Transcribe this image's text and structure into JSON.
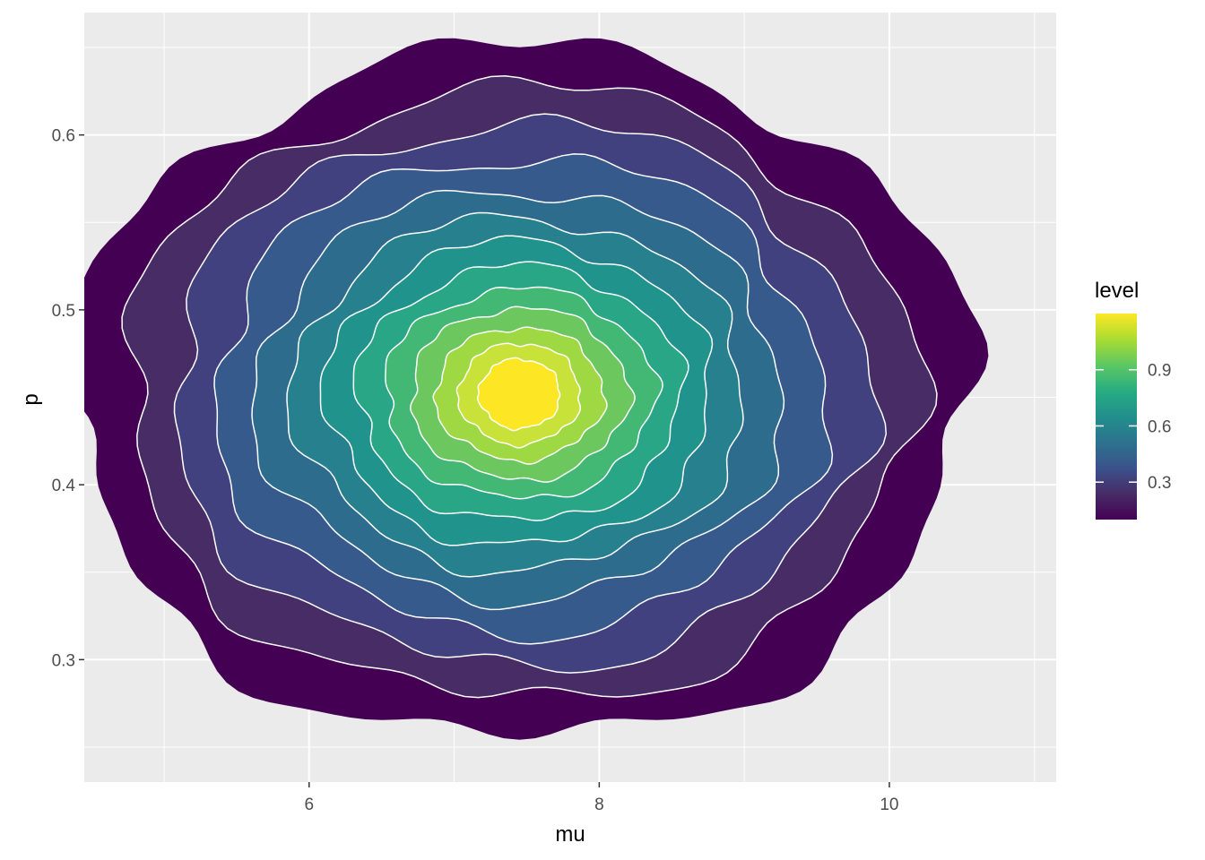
{
  "chart_data": {
    "type": "density_2d_filled",
    "title": "",
    "xlabel": "mu",
    "ylabel": "p",
    "xlim": [
      4.45,
      11.15
    ],
    "ylim": [
      0.23,
      0.67
    ],
    "x_ticks": [
      6,
      8,
      10
    ],
    "x_tick_labels": [
      "6",
      "8",
      "10"
    ],
    "x_minor_ticks": [
      5,
      7,
      9,
      11
    ],
    "y_ticks": [
      0.3,
      0.4,
      0.5,
      0.6
    ],
    "y_tick_labels": [
      "0.3",
      "0.4",
      "0.5",
      "0.6"
    ],
    "y_minor_ticks": [
      0.25,
      0.35,
      0.45,
      0.55,
      0.65
    ],
    "grid": true,
    "panel_background": "#ebebeb",
    "contour_line_color": "#ffffff",
    "peak": {
      "mu": 7.45,
      "p": 0.452
    },
    "levels": [
      {
        "rx": 3.1,
        "ry": 0.198,
        "color": "#440154"
      },
      {
        "rx": 2.72,
        "ry": 0.175,
        "color": "#472C66"
      },
      {
        "rx": 2.4,
        "ry": 0.155,
        "color": "#40417E"
      },
      {
        "rx": 2.1,
        "ry": 0.136,
        "color": "#375A8C"
      },
      {
        "rx": 1.82,
        "ry": 0.117,
        "color": "#2E6C8E"
      },
      {
        "rx": 1.56,
        "ry": 0.101,
        "color": "#27808E"
      },
      {
        "rx": 1.33,
        "ry": 0.087,
        "color": "#20938C"
      },
      {
        "rx": 1.12,
        "ry": 0.073,
        "color": "#28A685"
      },
      {
        "rx": 0.93,
        "ry": 0.06,
        "color": "#42B874"
      },
      {
        "rx": 0.75,
        "ry": 0.049,
        "color": "#6BC75E"
      },
      {
        "rx": 0.58,
        "ry": 0.038,
        "color": "#9ED842"
      },
      {
        "rx": 0.42,
        "ry": 0.029,
        "color": "#C9E23A"
      },
      {
        "rx": 0.28,
        "ry": 0.02,
        "color": "#FDE725"
      }
    ],
    "legend": {
      "title": "level",
      "position": "right",
      "colors": [
        "#440154",
        "#472C66",
        "#3B528B",
        "#2C728E",
        "#21908C",
        "#27AD81",
        "#5DC863",
        "#AADC32",
        "#FDE725"
      ],
      "range": [
        0.1,
        1.2
      ],
      "ticks": [
        0.3,
        0.6,
        0.9
      ],
      "tick_labels": [
        "0.3",
        "0.6",
        "0.9"
      ]
    }
  }
}
